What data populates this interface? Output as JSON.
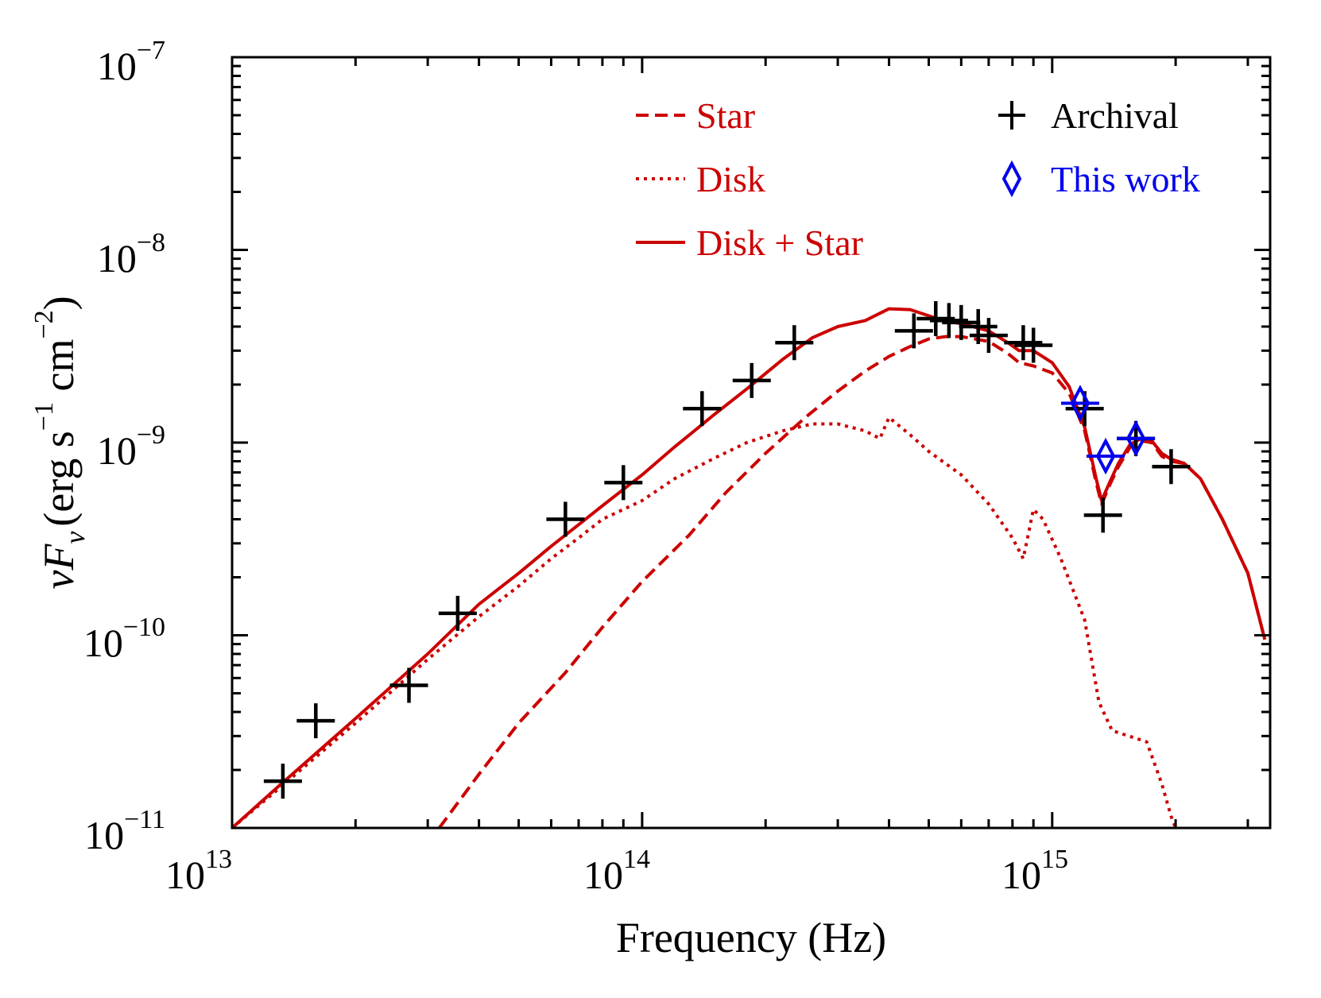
{
  "chart_data": {
    "type": "scatter",
    "xlabel": "Frequency (Hz)",
    "ylabel": {
      "nu": "ν",
      "F": "F",
      "sub": "ν",
      "units_open": "(erg s",
      "units_exp1": "−1",
      "units_mid": " cm",
      "units_exp2": "−2",
      "units_close": ")"
    },
    "x_scale": "log",
    "y_scale": "log",
    "xlim": [
      10000000000000.0,
      3400000000000000.0
    ],
    "ylim": [
      1e-11,
      1e-07
    ],
    "x_ticks": [
      {
        "value": 10000000000000.0,
        "base": "10",
        "exp": "13"
      },
      {
        "value": 100000000000000.0,
        "base": "10",
        "exp": "14"
      },
      {
        "value": 1000000000000000.0,
        "base": "10",
        "exp": "15"
      }
    ],
    "y_ticks": [
      {
        "value": 1e-11,
        "base": "10",
        "exp": "−11"
      },
      {
        "value": 1e-10,
        "base": "10",
        "exp": "−10"
      },
      {
        "value": 1e-09,
        "base": "10",
        "exp": "−9"
      },
      {
        "value": 1e-08,
        "base": "10",
        "exp": "−8"
      },
      {
        "value": 1e-07,
        "base": "10",
        "exp": "−7"
      }
    ],
    "grid": false,
    "colors": {
      "model": "#cc0000",
      "archival": "#000000",
      "this_work": "#0000ee"
    },
    "legend": {
      "placement": "top",
      "entries": [
        {
          "label": "Star",
          "style": "dashed",
          "color": "#cc0000"
        },
        {
          "label": "Disk",
          "style": "dotted",
          "color": "#cc0000"
        },
        {
          "label": "Disk + Star",
          "style": "solid",
          "color": "#cc0000"
        },
        {
          "label": "Archival",
          "style": "plus",
          "color": "#000000"
        },
        {
          "label": "This work",
          "style": "diamond",
          "color": "#0000ee"
        }
      ]
    },
    "series": [
      {
        "name": "Star",
        "kind": "line",
        "style": "dashed",
        "color": "#cc0000",
        "points": [
          [
            32000000000000.0,
            9.2e-12
          ],
          [
            40000000000000.0,
            1.9e-11
          ],
          [
            50000000000000.0,
            3.5e-11
          ],
          [
            65000000000000.0,
            6.4e-11
          ],
          [
            80000000000000.0,
            1.1e-10
          ],
          [
            100000000000000.0,
            1.9e-10
          ],
          [
            130000000000000.0,
            3.3e-10
          ],
          [
            160000000000000.0,
            5.5e-10
          ],
          [
            200000000000000.0,
            8.8e-10
          ],
          [
            250000000000000.0,
            1.35e-09
          ],
          [
            300000000000000.0,
            1.85e-09
          ],
          [
            350000000000000.0,
            2.35e-09
          ],
          [
            400000000000000.0,
            2.8e-09
          ],
          [
            450000000000000.0,
            3.15e-09
          ],
          [
            500000000000000.0,
            3.45e-09
          ],
          [
            550000000000000.0,
            3.55e-09
          ],
          [
            600000000000000.0,
            3.55e-09
          ],
          [
            700000000000000.0,
            3.35e-09
          ],
          [
            780000000000000.0,
            2.9e-09
          ],
          [
            830000000000000.0,
            2.6e-09
          ],
          [
            900000000000000.0,
            2.5e-09
          ],
          [
            1000000000000000.0,
            2.3e-09
          ],
          [
            1100000000000000.0,
            1.8e-09
          ],
          [
            1200000000000000.0,
            1.15e-09
          ],
          [
            1280000000000000.0,
            6.2e-10
          ],
          [
            1320000000000000.0,
            4.8e-10
          ],
          [
            1380000000000000.0,
            6e-10
          ],
          [
            1450000000000000.0,
            7.5e-10
          ],
          [
            1550000000000000.0,
            9.5e-10
          ],
          [
            1650000000000000.0,
            1.02e-09
          ],
          [
            1750000000000000.0,
            1e-09
          ],
          [
            1850000000000000.0,
            8.5e-10
          ],
          [
            1950000000000000.0,
            8e-10
          ],
          [
            2100000000000000.0,
            7.8e-10
          ],
          [
            2300000000000000.0,
            6.5e-10
          ],
          [
            2600000000000000.0,
            4e-10
          ],
          [
            3000000000000000.0,
            2.1e-10
          ],
          [
            3300000000000000.0,
            9.5e-11
          ]
        ]
      },
      {
        "name": "Disk",
        "kind": "line",
        "style": "dotted",
        "color": "#cc0000",
        "points": [
          [
            10000000000000.0,
            1e-11
          ],
          [
            13000000000000.0,
            1.6e-11
          ],
          [
            20000000000000.0,
            3.5e-11
          ],
          [
            30000000000000.0,
            7.5e-11
          ],
          [
            40000000000000.0,
            1.25e-10
          ],
          [
            50000000000000.0,
            1.8e-10
          ],
          [
            60000000000000.0,
            2.5e-10
          ],
          [
            70000000000000.0,
            3.2e-10
          ],
          [
            80000000000000.0,
            4e-10
          ],
          [
            100000000000000.0,
            5e-10
          ],
          [
            120000000000000.0,
            6.5e-10
          ],
          [
            150000000000000.0,
            8.3e-10
          ],
          [
            180000000000000.0,
            1e-09
          ],
          [
            220000000000000.0,
            1.15e-09
          ],
          [
            260000000000000.0,
            1.25e-09
          ],
          [
            300000000000000.0,
            1.25e-09
          ],
          [
            350000000000000.0,
            1.15e-09
          ],
          [
            380000000000000.0,
            1.05e-09
          ],
          [
            400000000000000.0,
            1.35e-09
          ],
          [
            450000000000000.0,
            1.1e-09
          ],
          [
            500000000000000.0,
            9e-10
          ],
          [
            600000000000000.0,
            6.8e-10
          ],
          [
            700000000000000.0,
            4.8e-10
          ],
          [
            800000000000000.0,
            3.2e-10
          ],
          [
            850000000000000.0,
            2.5e-10
          ],
          [
            900000000000000.0,
            4.5e-10
          ],
          [
            950000000000000.0,
            4e-10
          ],
          [
            1050000000000000.0,
            2.5e-10
          ],
          [
            1200000000000000.0,
            1.2e-10
          ],
          [
            1300000000000000.0,
            4.5e-11
          ],
          [
            1400000000000000.0,
            3.2e-11
          ],
          [
            1700000000000000.0,
            2.8e-11
          ],
          [
            1850000000000000.0,
            1.7e-11
          ],
          [
            1950000000000000.0,
            1.15e-11
          ],
          [
            2000000000000000.0,
            1e-11
          ]
        ]
      },
      {
        "name": "Disk + Star",
        "kind": "line",
        "style": "solid",
        "color": "#cc0000",
        "points": [
          [
            10000000000000.0,
            1e-11
          ],
          [
            13000000000000.0,
            1.65e-11
          ],
          [
            20000000000000.0,
            3.7e-11
          ],
          [
            30000000000000.0,
            8e-11
          ],
          [
            40000000000000.0,
            1.45e-10
          ],
          [
            50000000000000.0,
            2.1e-10
          ],
          [
            60000000000000.0,
            2.9e-10
          ],
          [
            70000000000000.0,
            3.75e-10
          ],
          [
            80000000000000.0,
            4.7e-10
          ],
          [
            100000000000000.0,
            6.8e-10
          ],
          [
            120000000000000.0,
            9.5e-10
          ],
          [
            150000000000000.0,
            1.4e-09
          ],
          [
            180000000000000.0,
            1.9e-09
          ],
          [
            220000000000000.0,
            2.7e-09
          ],
          [
            260000000000000.0,
            3.5e-09
          ],
          [
            300000000000000.0,
            4e-09
          ],
          [
            350000000000000.0,
            4.3e-09
          ],
          [
            400000000000000.0,
            4.95e-09
          ],
          [
            450000000000000.0,
            4.9e-09
          ],
          [
            500000000000000.0,
            4.55e-09
          ],
          [
            550000000000000.0,
            4.25e-09
          ],
          [
            600000000000000.0,
            4.15e-09
          ],
          [
            700000000000000.0,
            3.8e-09
          ],
          [
            780000000000000.0,
            3.3e-09
          ],
          [
            830000000000000.0,
            3e-09
          ],
          [
            900000000000000.0,
            3e-09
          ],
          [
            1000000000000000.0,
            2.6e-09
          ],
          [
            1100000000000000.0,
            1.95e-09
          ],
          [
            1200000000000000.0,
            1.2e-09
          ],
          [
            1280000000000000.0,
            6.5e-10
          ],
          [
            1320000000000000.0,
            5e-10
          ],
          [
            1380000000000000.0,
            6.2e-10
          ],
          [
            1450000000000000.0,
            7.8e-10
          ],
          [
            1550000000000000.0,
            9.8e-10
          ],
          [
            1650000000000000.0,
            1.05e-09
          ],
          [
            1750000000000000.0,
            1.02e-09
          ],
          [
            1850000000000000.0,
            8.8e-10
          ],
          [
            1950000000000000.0,
            8.2e-10
          ],
          [
            2100000000000000.0,
            7.8e-10
          ],
          [
            2300000000000000.0,
            6.5e-10
          ],
          [
            2600000000000000.0,
            4e-10
          ],
          [
            3000000000000000.0,
            2.1e-10
          ],
          [
            3300000000000000.0,
            9.5e-11
          ]
        ]
      },
      {
        "name": "Archival",
        "kind": "plus",
        "color": "#000000",
        "points": [
          [
            13300000000000.0,
            1.75e-11
          ],
          [
            16000000000000.0,
            3.6e-11
          ],
          [
            27000000000000.0,
            5.5e-11
          ],
          [
            35500000000000.0,
            1.3e-10
          ],
          [
            65000000000000.0,
            4e-10
          ],
          [
            90000000000000.0,
            6.2e-10
          ],
          [
            140000000000000.0,
            1.5e-09
          ],
          [
            185000000000000.0,
            2.1e-09
          ],
          [
            235000000000000.0,
            3.3e-09
          ],
          [
            460000000000000.0,
            3.8e-09
          ],
          [
            520000000000000.0,
            4.4e-09
          ],
          [
            560000000000000.0,
            4.3e-09
          ],
          [
            600000000000000.0,
            4.2e-09
          ],
          [
            660000000000000.0,
            4e-09
          ],
          [
            700000000000000.0,
            3.6e-09
          ],
          [
            850000000000000.0,
            3.3e-09
          ],
          [
            900000000000000.0,
            3.2e-09
          ],
          [
            1200000000000000.0,
            1.5e-09
          ],
          [
            1330000000000000.0,
            4.2e-10
          ],
          [
            1600000000000000.0,
            1.05e-09
          ],
          [
            1950000000000000.0,
            7.5e-10
          ]
        ]
      },
      {
        "name": "This work",
        "kind": "diamond",
        "color": "#0000ee",
        "points": [
          [
            1170000000000000.0,
            1.6e-09
          ],
          [
            1350000000000000.0,
            8.5e-10
          ],
          [
            1600000000000000.0,
            1.05e-09
          ]
        ]
      }
    ]
  }
}
